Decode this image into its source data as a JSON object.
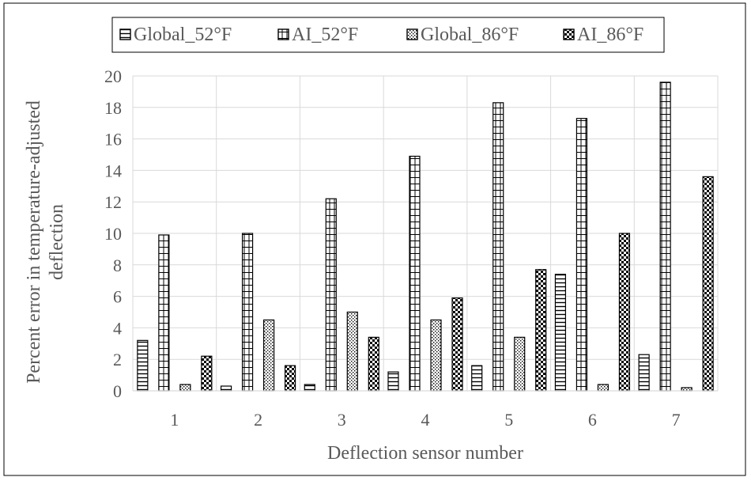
{
  "chart_data": {
    "type": "bar",
    "title": "",
    "xlabel": "Deflection sensor number",
    "ylabel": "Percent error in temperature-adjusted deflection",
    "categories": [
      "1",
      "2",
      "3",
      "4",
      "5",
      "6",
      "7"
    ],
    "ylim": [
      0,
      20
    ],
    "yticks": [
      "0",
      "2",
      "4",
      "6",
      "8",
      "10",
      "12",
      "14",
      "16",
      "18",
      "20"
    ],
    "grid": true,
    "legend_position": "top",
    "series": [
      {
        "name": "Global_52°F",
        "pattern": "horizontal-lines",
        "values": [
          3.2,
          0.3,
          0.4,
          1.2,
          1.6,
          7.4,
          2.3
        ]
      },
      {
        "name": "AI_52°F",
        "pattern": "grid",
        "values": [
          9.9,
          10.0,
          12.2,
          14.9,
          18.3,
          17.3,
          19.6
        ]
      },
      {
        "name": "Global_86°F",
        "pattern": "dots",
        "values": [
          0.4,
          4.5,
          5.0,
          4.5,
          3.4,
          0.4,
          0.2
        ]
      },
      {
        "name": "AI_86°F",
        "pattern": "checkerboard",
        "values": [
          2.2,
          1.6,
          3.4,
          5.9,
          7.7,
          10.0,
          13.6
        ]
      }
    ],
    "colors": {
      "ink": "#000000",
      "grid": "#d9d9d9",
      "text": "#595959",
      "frame": "#000000"
    }
  }
}
